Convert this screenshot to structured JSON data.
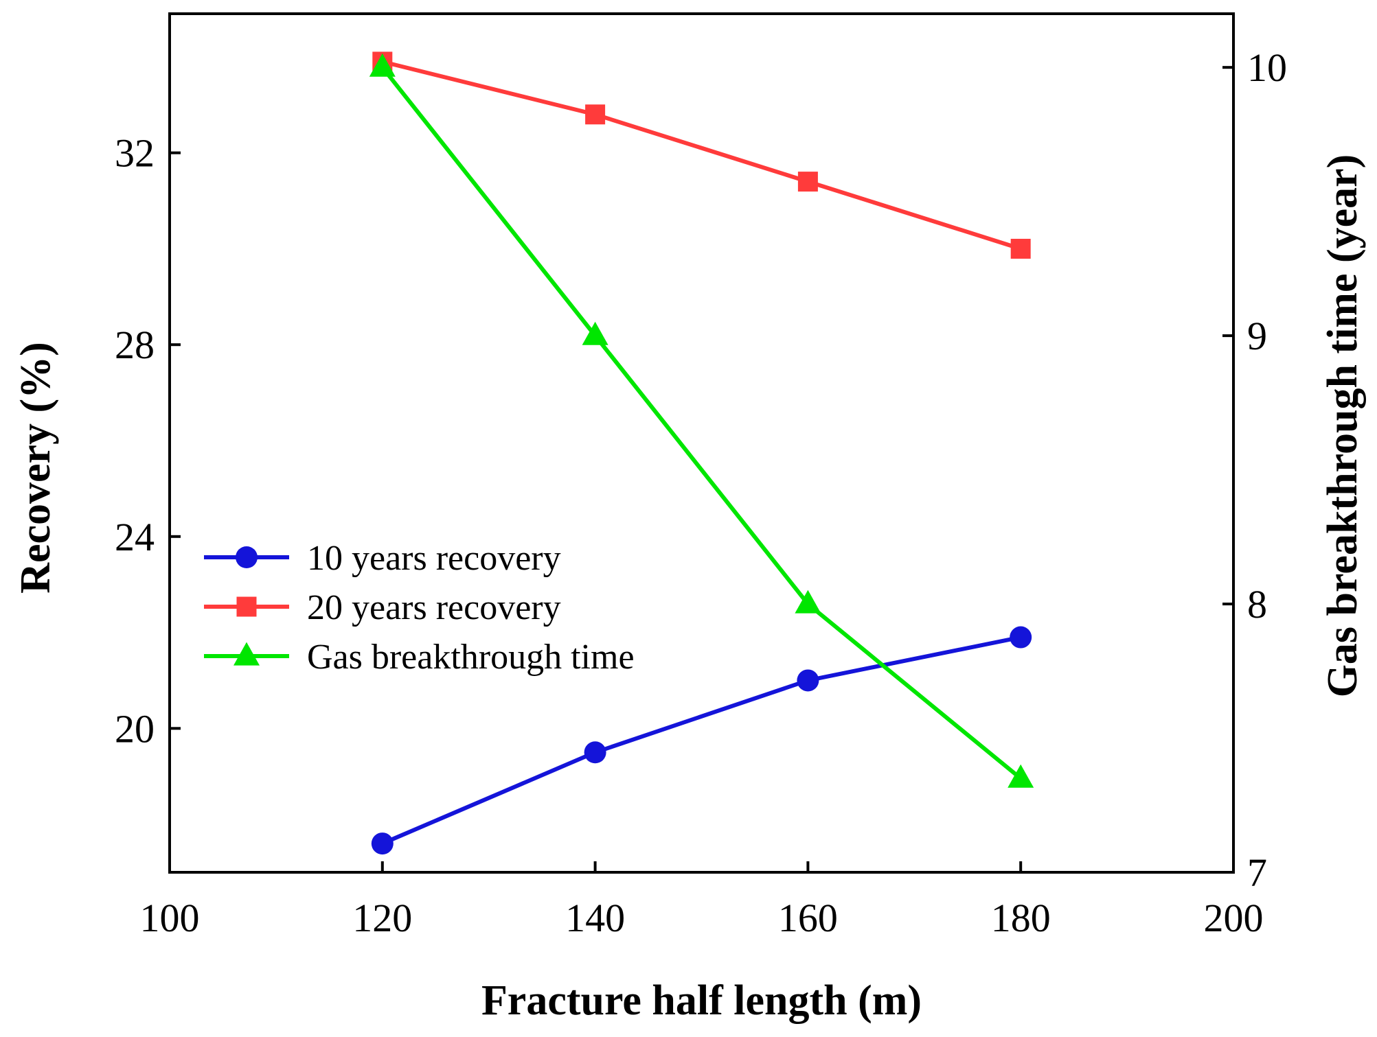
{
  "chart_data": {
    "type": "line",
    "title": "",
    "xlabel": "Fracture half length (m)",
    "ylabel": "Recovery (%)",
    "y2label": "Gas breakthrough time (year)",
    "xlim": [
      100,
      200
    ],
    "ylim": [
      17,
      34.9
    ],
    "y2lim": [
      7,
      10.2
    ],
    "x_ticks": [
      100,
      120,
      140,
      160,
      180,
      200
    ],
    "y_ticks": [
      20,
      24,
      28,
      32
    ],
    "y2_ticks": [
      7,
      8,
      9,
      10
    ],
    "grid": false,
    "legend_position": "center-left",
    "x": [
      120,
      140,
      160,
      180
    ],
    "series": [
      {
        "name": "10 years recovery",
        "axis": "left",
        "color": "#1414d9",
        "marker": "circle",
        "values": [
          17.6,
          19.5,
          21.0,
          21.9
        ]
      },
      {
        "name": "20 years recovery",
        "axis": "left",
        "color": "#ff3b3b",
        "marker": "square",
        "values": [
          33.9,
          32.8,
          31.4,
          30.0
        ]
      },
      {
        "name": "Gas breakthrough time",
        "axis": "right",
        "color": "#00e600",
        "marker": "triangle",
        "values": [
          10.0,
          9.0,
          8.0,
          7.35
        ]
      }
    ]
  }
}
